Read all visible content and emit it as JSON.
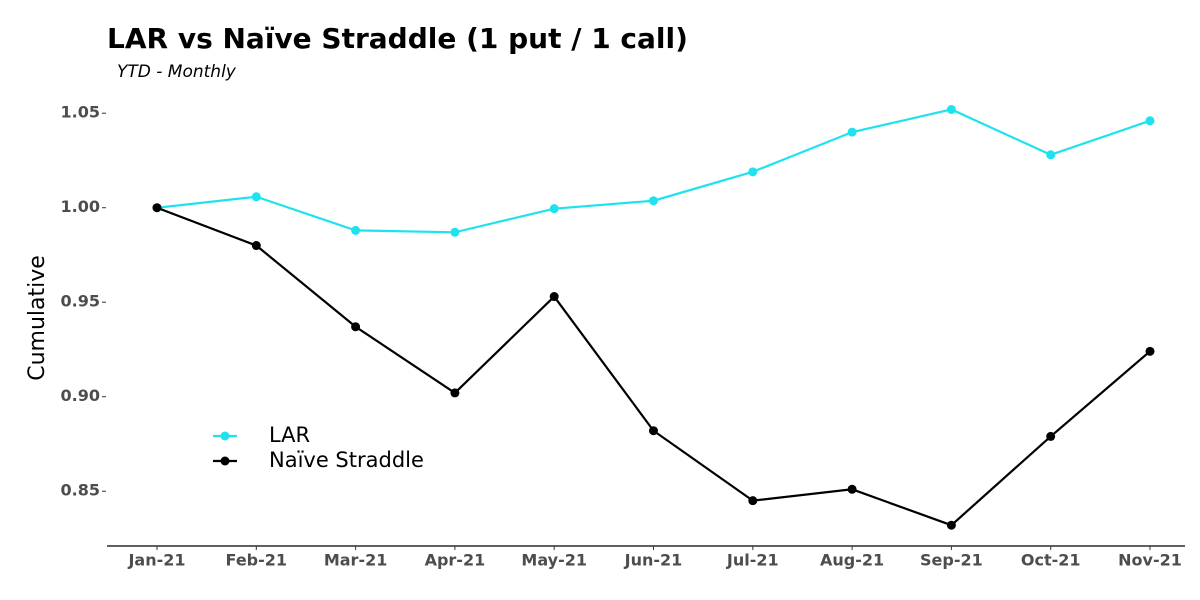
{
  "chart_data": {
    "type": "line",
    "title": "LAR vs Naïve Straddle (1 put / 1 call)",
    "subtitle": "YTD - Monthly",
    "y_label": "Cumulative",
    "categories": [
      "Jan-21",
      "Feb-21",
      "Mar-21",
      "Apr-21",
      "May-21",
      "Jun-21",
      "Jul-21",
      "Aug-21",
      "Sep-21",
      "Oct-21",
      "Nov-21"
    ],
    "series": [
      {
        "name": "LAR",
        "color": "#1ee3ee",
        "values": [
          1.0,
          1.0058,
          0.988,
          0.987,
          0.9995,
          1.0037,
          1.019,
          1.04,
          1.052,
          1.028,
          1.046
        ]
      },
      {
        "name": "Naïve Straddle",
        "color": "#000000",
        "values": [
          1.0,
          0.98,
          0.937,
          0.902,
          0.953,
          0.882,
          0.845,
          0.851,
          0.832,
          0.879,
          0.924
        ]
      }
    ],
    "ylim": [
      0.821,
      1.057
    ],
    "yticks": [
      0.85,
      {
        "value": 0.9,
        "label": "0.90"
      },
      0.95,
      {
        "value": 1.0,
        "label": "1.00"
      },
      1.05
    ],
    "grid": false,
    "legend": "left"
  }
}
